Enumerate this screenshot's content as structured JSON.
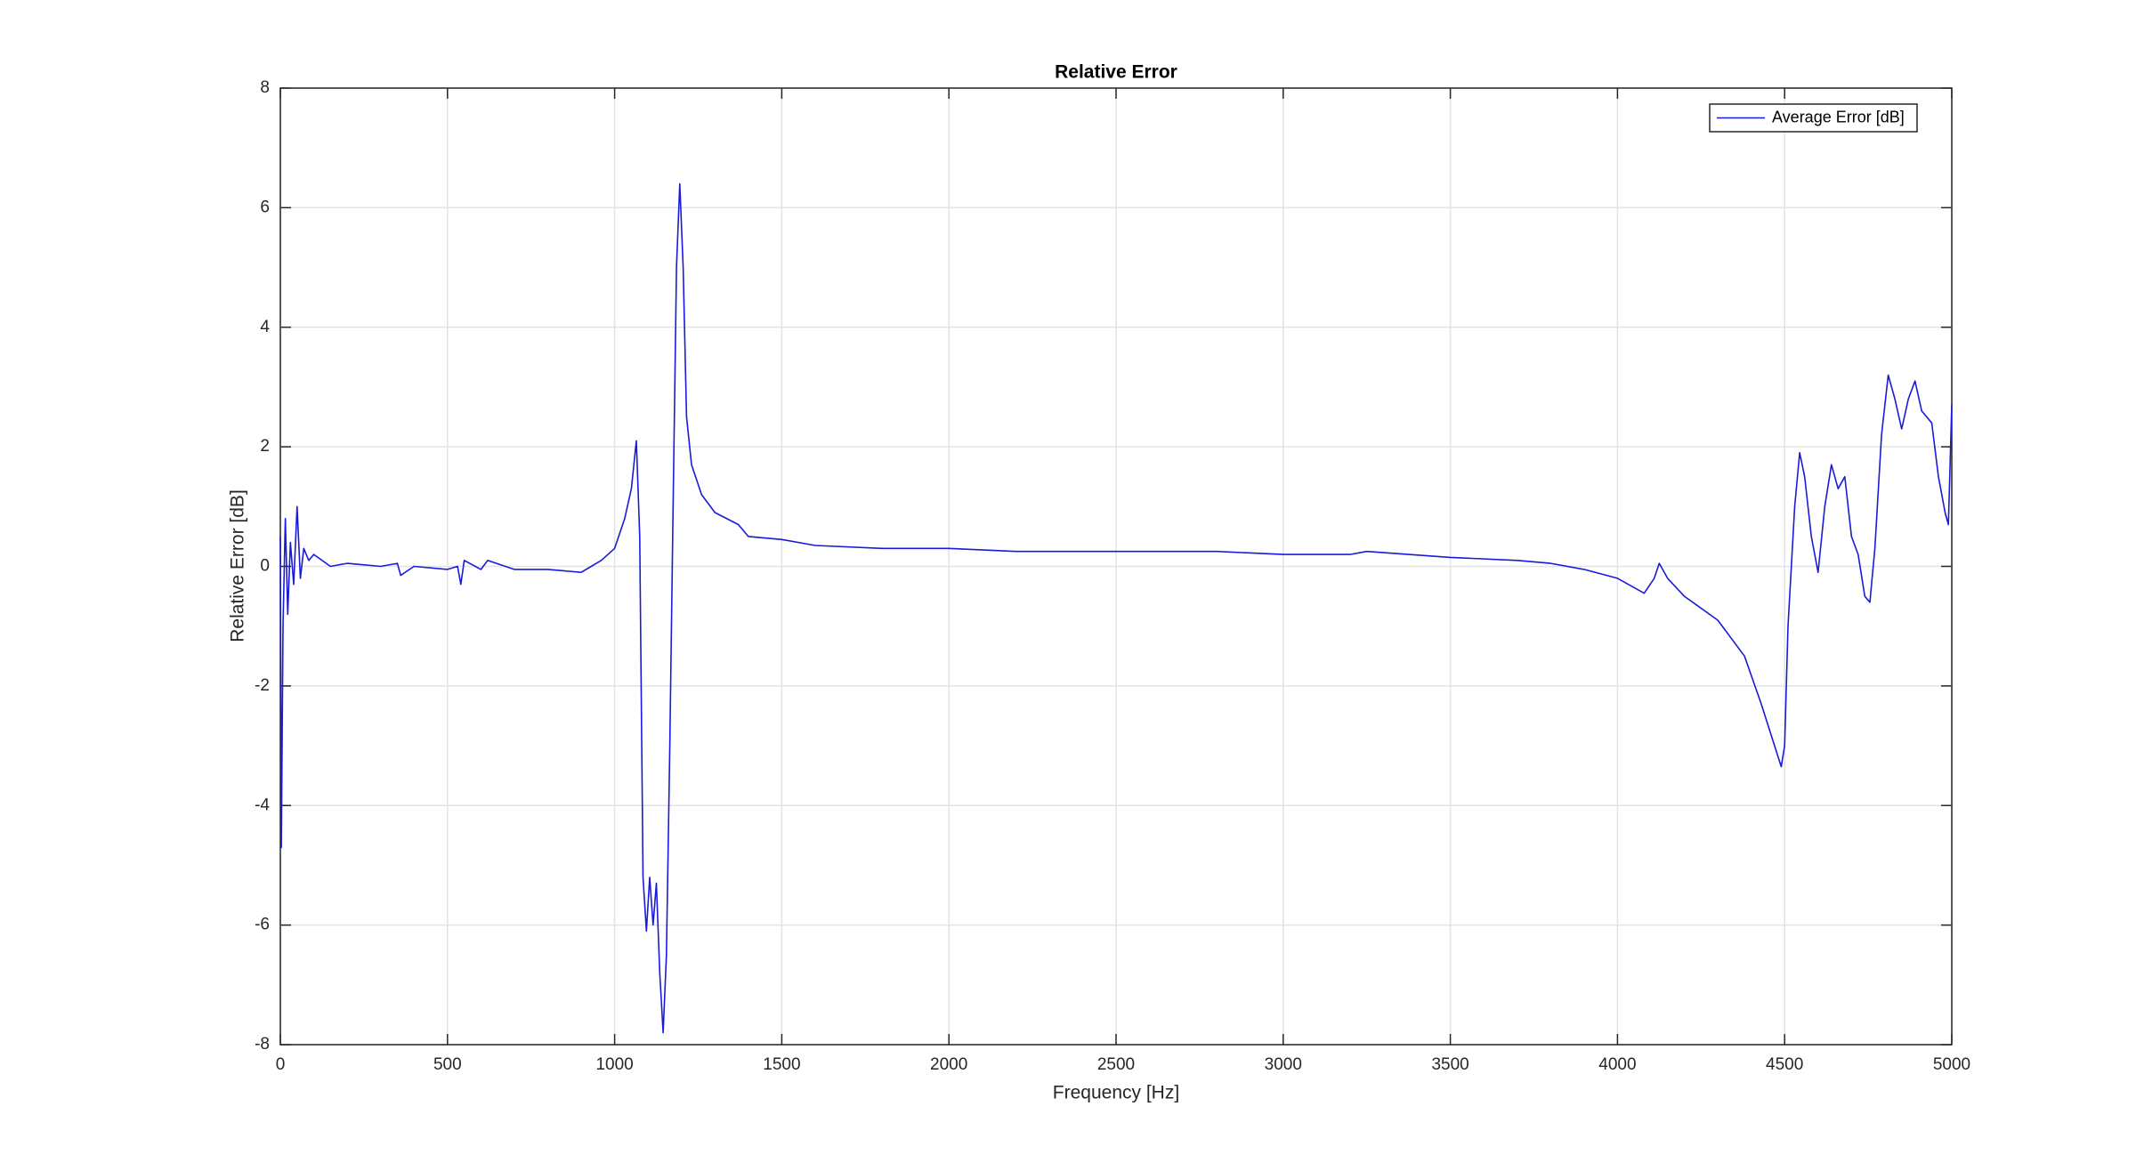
{
  "chart_data": {
    "type": "line",
    "title": "Relative Error",
    "xlabel": "Frequency [Hz]",
    "ylabel": "Relative Error [dB]",
    "x": [
      0,
      3,
      8,
      15,
      22,
      30,
      40,
      50,
      60,
      70,
      85,
      100,
      150,
      200,
      300,
      350,
      360,
      400,
      500,
      530,
      540,
      550,
      600,
      620,
      700,
      800,
      900,
      930,
      960,
      1000,
      1030,
      1050,
      1065,
      1075,
      1085,
      1095,
      1105,
      1115,
      1125,
      1135,
      1145,
      1155,
      1165,
      1175,
      1185,
      1195,
      1205,
      1215,
      1230,
      1260,
      1300,
      1370,
      1400,
      1500,
      1600,
      1800,
      2000,
      2200,
      2400,
      2600,
      2800,
      3000,
      3200,
      3250,
      3500,
      3700,
      3800,
      3900,
      4000,
      4080,
      4110,
      4125,
      4150,
      4200,
      4300,
      4380,
      4430,
      4470,
      4490,
      4500,
      4510,
      4530,
      4545,
      4560,
      4580,
      4600,
      4620,
      4640,
      4660,
      4680,
      4700,
      4720,
      4740,
      4755,
      4770,
      4790,
      4810,
      4830,
      4850,
      4870,
      4890,
      4910,
      4940,
      4960,
      4980,
      4990,
      5000
    ],
    "series": [
      {
        "name": "Average Error [dB]",
        "color": "#1a1adb",
        "values": [
          0.5,
          -4.7,
          -1,
          0.8,
          -0.8,
          0.4,
          -0.3,
          1.0,
          -0.2,
          0.3,
          0.1,
          0.2,
          0.0,
          0.05,
          0.0,
          0.05,
          -0.15,
          0.0,
          -0.05,
          0.0,
          -0.3,
          0.1,
          -0.05,
          0.1,
          -0.05,
          -0.05,
          -0.1,
          0.0,
          0.1,
          0.3,
          0.8,
          1.3,
          2.1,
          0.5,
          -5.2,
          -6.1,
          -5.2,
          -6.0,
          -5.3,
          -6.8,
          -7.8,
          -6.5,
          -3,
          1,
          5,
          6.4,
          5.0,
          2.5,
          1.7,
          1.2,
          0.9,
          0.7,
          0.5,
          0.45,
          0.35,
          0.3,
          0.3,
          0.25,
          0.25,
          0.25,
          0.25,
          0.2,
          0.2,
          0.25,
          0.15,
          0.1,
          0.05,
          -0.05,
          -0.2,
          -0.45,
          -0.2,
          0.05,
          -0.2,
          -0.5,
          -0.9,
          -1.5,
          -2.3,
          -3.0,
          -3.35,
          -3.0,
          -1.0,
          1.0,
          1.9,
          1.5,
          0.5,
          -0.1,
          1.0,
          1.7,
          1.3,
          1.5,
          0.5,
          0.2,
          -0.5,
          -0.6,
          0.3,
          2.2,
          3.2,
          2.8,
          2.3,
          2.8,
          3.1,
          2.6,
          2.4,
          1.5,
          0.9,
          0.7,
          2.7
        ]
      }
    ],
    "xlim": [
      0,
      5000
    ],
    "xticks": [
      0,
      500,
      1000,
      1500,
      2000,
      2500,
      3000,
      3500,
      4000,
      4500,
      5000
    ],
    "ylim": [
      -8,
      8
    ],
    "yticks": [
      -8,
      -6,
      -4,
      -2,
      0,
      2,
      4,
      6,
      8
    ],
    "grid": true,
    "legend": "upper right"
  }
}
